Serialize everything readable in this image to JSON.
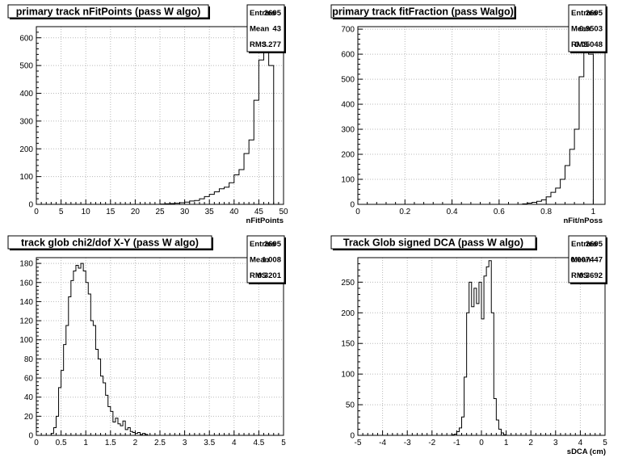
{
  "colors": {
    "background": "#ffffff",
    "frame": "#000000",
    "grid": "#b8b8b8",
    "histogram_line": "#000000"
  },
  "chart_data": [
    {
      "type": "bar",
      "style": "step-histogram",
      "title": "primary track nFitPoints (pass W algo)",
      "xlabel": "nFitPoints",
      "ylabel": "",
      "xlim": [
        0,
        50
      ],
      "ylim": [
        0,
        640
      ],
      "grid": true,
      "legend": "top-right",
      "x_ticks": [
        0,
        5,
        10,
        15,
        20,
        25,
        30,
        35,
        40,
        45,
        50
      ],
      "x_tick_labels": [
        "0",
        "5",
        "10",
        "15",
        "20",
        "25",
        "30",
        "35",
        "40",
        "45",
        "50"
      ],
      "y_ticks": [
        0,
        100,
        200,
        300,
        400,
        500,
        600
      ],
      "y_tick_labels": [
        "0",
        "100",
        "200",
        "300",
        "400",
        "500",
        "600"
      ],
      "stats": [
        {
          "label": "Entries",
          "value": "2695"
        },
        {
          "label": "Mean",
          "value": "43"
        },
        {
          "label": "RMS",
          "value": "3.277"
        }
      ],
      "bin_edges": [
        25,
        26,
        27,
        28,
        29,
        30,
        31,
        32,
        33,
        34,
        35,
        36,
        37,
        38,
        39,
        40,
        41,
        42,
        43,
        44,
        45,
        46,
        47,
        48
      ],
      "values": [
        1,
        2,
        3,
        4,
        6,
        8,
        12,
        14,
        20,
        28,
        36,
        45,
        56,
        62,
        78,
        106,
        125,
        183,
        232,
        375,
        520,
        630,
        500
      ]
    },
    {
      "type": "bar",
      "style": "step-histogram",
      "title": "primary track fitFraction (pass Walgo)",
      "xlabel": "nFit/nPoss",
      "ylabel": "",
      "xlim": [
        0,
        1.05
      ],
      "ylim": [
        0,
        710
      ],
      "grid": true,
      "legend": "top-right",
      "x_ticks": [
        0,
        0.2,
        0.4,
        0.6,
        0.8,
        1
      ],
      "x_tick_labels": [
        "0",
        "0.2",
        "0.4",
        "0.6",
        "0.8",
        "1"
      ],
      "y_ticks": [
        0,
        100,
        200,
        300,
        400,
        500,
        600,
        700
      ],
      "y_tick_labels": [
        "0",
        "100",
        "200",
        "300",
        "400",
        "500",
        "600",
        "700"
      ],
      "stats": [
        {
          "label": "Entries",
          "value": "2695"
        },
        {
          "label": "Mean",
          "value": "0.9503"
        },
        {
          "label": "RMS",
          "value": "0.05048"
        }
      ],
      "bin_edges": [
        0.7,
        0.72,
        0.74,
        0.76,
        0.78,
        0.8,
        0.82,
        0.84,
        0.86,
        0.88,
        0.9,
        0.92,
        0.94,
        0.96,
        0.98,
        1.0
      ],
      "values": [
        2,
        5,
        8,
        12,
        18,
        30,
        48,
        65,
        100,
        155,
        220,
        300,
        510,
        640,
        600
      ]
    },
    {
      "type": "bar",
      "style": "step-histogram",
      "title": "track glob chi2/dof X-Y (pass W algo)",
      "xlabel": "",
      "ylabel": "",
      "xlim": [
        0,
        5
      ],
      "ylim": [
        0,
        186
      ],
      "grid": true,
      "legend": "top-right",
      "x_ticks": [
        0,
        0.5,
        1,
        1.5,
        2,
        2.5,
        3,
        3.5,
        4,
        4.5,
        5
      ],
      "x_tick_labels": [
        "0",
        "0.5",
        "1",
        "1.5",
        "2",
        "2.5",
        "3",
        "3.5",
        "4",
        "4.5",
        "5"
      ],
      "y_ticks": [
        0,
        20,
        40,
        60,
        80,
        100,
        120,
        140,
        160,
        180
      ],
      "y_tick_labels": [
        "0",
        "20",
        "40",
        "60",
        "80",
        "100",
        "120",
        "140",
        "160",
        "180"
      ],
      "stats": [
        {
          "label": "Entries",
          "value": "2695"
        },
        {
          "label": "Mean",
          "value": "1.008"
        },
        {
          "label": "RMS",
          "value": "0.3201"
        }
      ],
      "bin_edges": [
        0.3,
        0.35,
        0.4,
        0.45,
        0.5,
        0.55,
        0.6,
        0.65,
        0.7,
        0.75,
        0.8,
        0.85,
        0.9,
        0.95,
        1.0,
        1.05,
        1.1,
        1.15,
        1.2,
        1.25,
        1.3,
        1.35,
        1.4,
        1.45,
        1.5,
        1.55,
        1.6,
        1.65,
        1.7,
        1.75,
        1.8,
        1.85,
        1.9,
        1.95,
        2.0,
        2.05,
        2.1,
        2.15,
        2.2,
        2.25
      ],
      "values": [
        2,
        8,
        20,
        50,
        68,
        95,
        115,
        145,
        162,
        172,
        178,
        175,
        180,
        172,
        160,
        148,
        120,
        115,
        90,
        80,
        62,
        55,
        42,
        30,
        25,
        14,
        18,
        12,
        10,
        15,
        6,
        8,
        4,
        3,
        2,
        3,
        1,
        2,
        1
      ]
    },
    {
      "type": "bar",
      "style": "step-histogram",
      "title": "Track Glob signed DCA (pass W algo)",
      "xlabel": "sDCA (cm)",
      "ylabel": "",
      "xlim": [
        -5,
        5
      ],
      "ylim": [
        0,
        290
      ],
      "grid": true,
      "legend": "top-right",
      "x_ticks": [
        -5,
        -4,
        -3,
        -2,
        -1,
        0,
        1,
        2,
        3,
        4,
        5
      ],
      "x_tick_labels": [
        "-5",
        "-4",
        "-3",
        "-2",
        "-1",
        "0",
        "1",
        "2",
        "3",
        "4",
        "5"
      ],
      "y_ticks": [
        0,
        50,
        100,
        150,
        200,
        250
      ],
      "y_tick_labels": [
        "0",
        "50",
        "100",
        "150",
        "200",
        "250"
      ],
      "stats": [
        {
          "label": "Entries",
          "value": "2695"
        },
        {
          "label": "Mean",
          "value": "0.007447"
        },
        {
          "label": "RMS",
          "value": "0.3692"
        }
      ],
      "bin_edges": [
        -1.2,
        -1.1,
        -1.0,
        -0.9,
        -0.8,
        -0.7,
        -0.6,
        -0.5,
        -0.4,
        -0.3,
        -0.2,
        -0.1,
        0.0,
        0.1,
        0.2,
        0.3,
        0.4,
        0.5,
        0.6,
        0.7,
        0.8,
        0.9,
        1.0
      ],
      "values": [
        1,
        2,
        6,
        12,
        30,
        95,
        200,
        250,
        210,
        240,
        215,
        250,
        190,
        260,
        275,
        285,
        200,
        60,
        25,
        10,
        4,
        1
      ]
    }
  ]
}
